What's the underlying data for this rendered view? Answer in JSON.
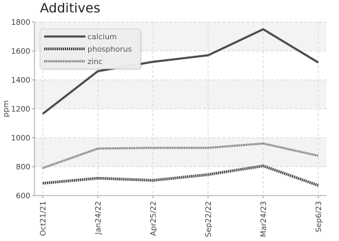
{
  "chart_data": {
    "type": "line",
    "title": "Additives",
    "xlabel": "",
    "ylabel": "ppm",
    "categories": [
      "Oct21/21",
      "Jan24/22",
      "Apr25/22",
      "Sep22/22",
      "Mar24/23",
      "Sep6/23"
    ],
    "ylim": [
      600,
      1800
    ],
    "yticks": [
      600,
      800,
      1000,
      1200,
      1400,
      1600,
      1800
    ],
    "grid": true,
    "legend_position": "top-left",
    "series": [
      {
        "name": "calcium",
        "values": [
          1165,
          1460,
          1525,
          1570,
          1750,
          1520
        ],
        "color": "#4a4a4a",
        "style": "solid"
      },
      {
        "name": "phosphorus",
        "values": [
          685,
          720,
          705,
          745,
          805,
          670
        ],
        "color": "#4a4a4a",
        "style": "dotted"
      },
      {
        "name": "zinc",
        "values": [
          790,
          925,
          930,
          930,
          960,
          875
        ],
        "color": "#6a6a6a",
        "style": "dotted-thin"
      }
    ]
  }
}
